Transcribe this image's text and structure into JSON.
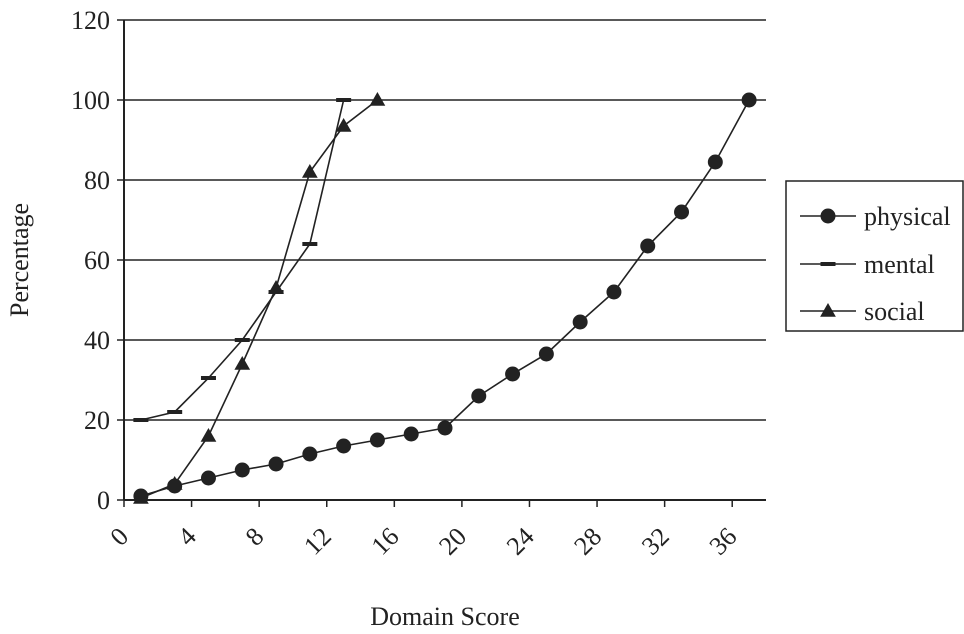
{
  "chart_data": {
    "type": "line",
    "xlabel": "Domain Score",
    "ylabel": "Percentage",
    "xlim": [
      0,
      38
    ],
    "ylim": [
      0,
      120
    ],
    "x_ticks": [
      "0",
      "4",
      "8",
      "12",
      "16",
      "20",
      "24",
      "28",
      "32",
      "36"
    ],
    "y_ticks": [
      "0",
      "20",
      "40",
      "60",
      "80",
      "100",
      "120"
    ],
    "grid": "horizontal",
    "legend_position": "right",
    "series": [
      {
        "name": "physical",
        "marker": "circle",
        "points": [
          [
            1,
            1
          ],
          [
            3,
            3.5
          ],
          [
            5,
            5.5
          ],
          [
            7,
            7.5
          ],
          [
            9,
            9
          ],
          [
            11,
            11.5
          ],
          [
            13,
            13.5
          ],
          [
            15,
            15
          ],
          [
            17,
            16.5
          ],
          [
            19,
            18
          ],
          [
            21,
            26
          ],
          [
            23,
            31.5
          ],
          [
            25,
            36.5
          ],
          [
            27,
            44.5
          ],
          [
            29,
            52
          ],
          [
            31,
            63.5
          ],
          [
            33,
            72
          ],
          [
            35,
            84.5
          ],
          [
            37,
            100
          ]
        ]
      },
      {
        "name": "mental",
        "marker": "dash",
        "points": [
          [
            1,
            20
          ],
          [
            3,
            22
          ],
          [
            5,
            30.5
          ],
          [
            7,
            40
          ],
          [
            9,
            52
          ],
          [
            11,
            64
          ],
          [
            13,
            100
          ]
        ]
      },
      {
        "name": "social",
        "marker": "triangle",
        "points": [
          [
            1,
            0.5
          ],
          [
            3,
            4
          ],
          [
            5,
            16
          ],
          [
            7,
            34
          ],
          [
            9,
            53
          ],
          [
            11,
            82
          ],
          [
            13,
            93.5
          ],
          [
            15,
            100
          ]
        ]
      }
    ]
  }
}
